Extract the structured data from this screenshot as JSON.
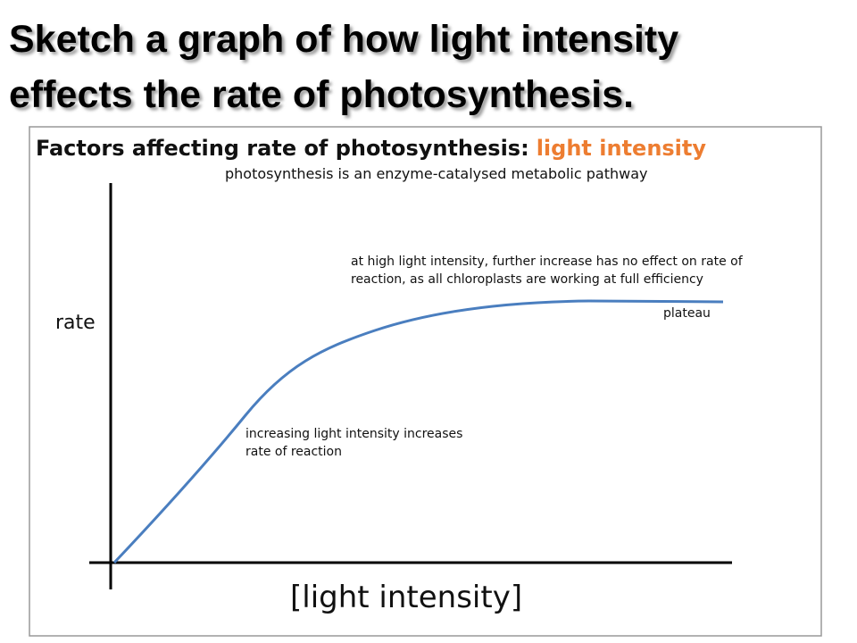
{
  "slide": {
    "title_lines": [
      "Sketch a graph of how light intensity",
      "effects the rate of photosynthesis."
    ]
  },
  "figure": {
    "heading": "Factors affecting rate of photosynthesis:",
    "heading_highlight": "light intensity",
    "subheading": "photosynthesis is an enzyme-catalysed metabolic pathway",
    "y_axis_label": "rate",
    "x_axis_label": "[light intensity]",
    "annotations": {
      "plateau_note": [
        "at high light intensity, further increase has no effect on rate of",
        "reaction, as all chloroplasts are working at full efficiency"
      ],
      "plateau": "plateau",
      "rise_note": [
        "increasing light intensity increases",
        "rate of reaction"
      ]
    }
  }
}
